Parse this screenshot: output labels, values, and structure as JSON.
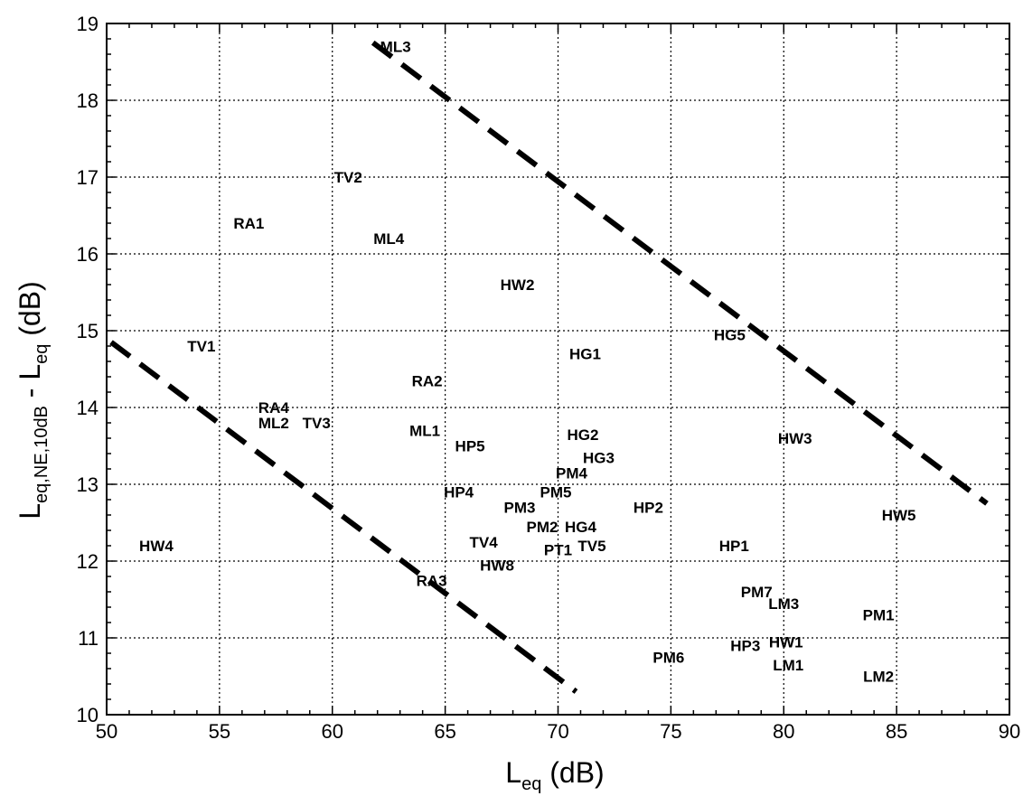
{
  "chart_data": {
    "type": "scatter",
    "xlabel": {
      "main": "L",
      "sub": "eq",
      "unit": " (dB)"
    },
    "ylabel": {
      "main": "L",
      "sub": "eq,NE,10dB",
      "mid": " - L",
      "sub2": "eq",
      "unit": " (dB)"
    },
    "xlim": [
      50,
      90
    ],
    "ylim": [
      10,
      19
    ],
    "xticks": [
      50,
      55,
      60,
      65,
      70,
      75,
      80,
      85,
      90
    ],
    "yticks": [
      10,
      11,
      12,
      13,
      14,
      15,
      16,
      17,
      18,
      19
    ],
    "grid": true,
    "points": [
      {
        "label": "ML3",
        "x": 62.8,
        "y": 18.7
      },
      {
        "label": "TV2",
        "x": 60.7,
        "y": 17.0
      },
      {
        "label": "RA1",
        "x": 56.3,
        "y": 16.4
      },
      {
        "label": "ML4",
        "x": 62.5,
        "y": 16.2
      },
      {
        "label": "HW2",
        "x": 68.2,
        "y": 15.6
      },
      {
        "label": "TV1",
        "x": 54.2,
        "y": 14.8
      },
      {
        "label": "HG5",
        "x": 77.6,
        "y": 14.95
      },
      {
        "label": "HG1",
        "x": 71.2,
        "y": 14.7
      },
      {
        "label": "RA2",
        "x": 64.2,
        "y": 14.35
      },
      {
        "label": "RA4",
        "x": 57.4,
        "y": 14.0
      },
      {
        "label": "ML2",
        "x": 57.4,
        "y": 13.8
      },
      {
        "label": "TV3",
        "x": 59.3,
        "y": 13.8
      },
      {
        "label": "ML1",
        "x": 64.1,
        "y": 13.7
      },
      {
        "label": "HG2",
        "x": 71.1,
        "y": 13.65
      },
      {
        "label": "HW3",
        "x": 80.5,
        "y": 13.6
      },
      {
        "label": "HP5",
        "x": 66.1,
        "y": 13.5
      },
      {
        "label": "HG3",
        "x": 71.8,
        "y": 13.35
      },
      {
        "label": "PM4",
        "x": 70.6,
        "y": 13.15
      },
      {
        "label": "HP4",
        "x": 65.6,
        "y": 12.9
      },
      {
        "label": "PM5",
        "x": 69.9,
        "y": 12.9
      },
      {
        "label": "PM3",
        "x": 68.3,
        "y": 12.7
      },
      {
        "label": "HP2",
        "x": 74.0,
        "y": 12.7
      },
      {
        "label": "HW5",
        "x": 85.1,
        "y": 12.6
      },
      {
        "label": "PM2",
        "x": 69.3,
        "y": 12.45
      },
      {
        "label": "HG4",
        "x": 71.0,
        "y": 12.45
      },
      {
        "label": "TV4",
        "x": 66.7,
        "y": 12.25
      },
      {
        "label": "HP1",
        "x": 77.8,
        "y": 12.2
      },
      {
        "label": "HW4",
        "x": 52.2,
        "y": 12.2
      },
      {
        "label": "PT1",
        "x": 70.0,
        "y": 12.15
      },
      {
        "label": "TV5",
        "x": 71.5,
        "y": 12.2
      },
      {
        "label": "HW8",
        "x": 67.3,
        "y": 11.95
      },
      {
        "label": "RA3",
        "x": 64.4,
        "y": 11.75
      },
      {
        "label": "PM7",
        "x": 78.8,
        "y": 11.6
      },
      {
        "label": "LM3",
        "x": 80.0,
        "y": 11.45
      },
      {
        "label": "PM1",
        "x": 84.2,
        "y": 11.3
      },
      {
        "label": "HW1",
        "x": 80.1,
        "y": 10.95
      },
      {
        "label": "HP3",
        "x": 78.3,
        "y": 10.9
      },
      {
        "label": "PM6",
        "x": 74.9,
        "y": 10.75
      },
      {
        "label": "LM1",
        "x": 80.2,
        "y": 10.65
      },
      {
        "label": "LM2",
        "x": 84.2,
        "y": 10.5
      }
    ],
    "lines": [
      {
        "style": "dashed",
        "from": [
          50.2,
          14.85
        ],
        "to": [
          70.8,
          10.3
        ]
      },
      {
        "style": "dashed",
        "from": [
          61.8,
          18.75
        ],
        "to": [
          89.0,
          12.75
        ]
      }
    ]
  }
}
